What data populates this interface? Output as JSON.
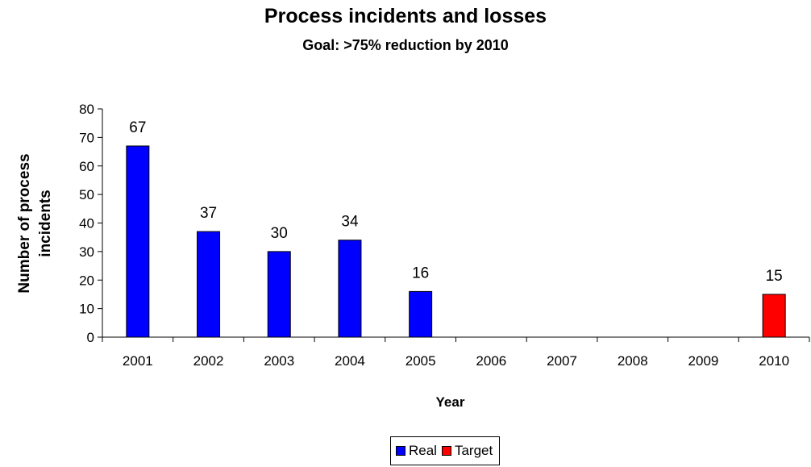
{
  "chart_data": {
    "type": "bar",
    "title": "Process incidents and losses",
    "subtitle": "Goal: >75% reduction by 2010",
    "xlabel": "Year",
    "ylabel": "Number of process incidents",
    "ylim": [
      0,
      80
    ],
    "yticks": [
      0,
      10,
      20,
      30,
      40,
      50,
      60,
      70,
      80
    ],
    "categories": [
      "2001",
      "2002",
      "2003",
      "2004",
      "2005",
      "2006",
      "2007",
      "2008",
      "2009",
      "2010"
    ],
    "series": [
      {
        "name": "Real",
        "color": "#0000ff",
        "values": [
          67,
          37,
          30,
          34,
          16,
          null,
          null,
          null,
          null,
          null
        ]
      },
      {
        "name": "Target",
        "color": "#ff0000",
        "values": [
          null,
          null,
          null,
          null,
          null,
          null,
          null,
          null,
          null,
          15
        ]
      }
    ],
    "grid": false,
    "legend_position": "bottom"
  }
}
